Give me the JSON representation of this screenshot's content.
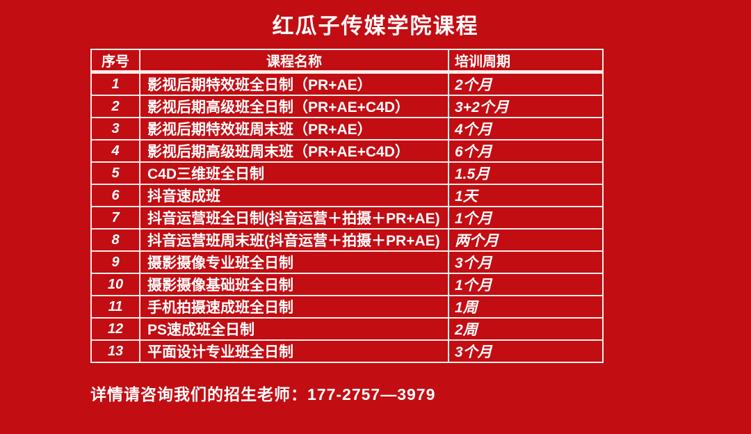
{
  "title": "红瓜子传媒学院课程",
  "table": {
    "headers": [
      "序号",
      "课程名称",
      "培训周期"
    ],
    "rows": [
      {
        "index": "1",
        "name": "影视后期特效班全日制（PR+AE）",
        "period": "2个月"
      },
      {
        "index": "2",
        "name": "影视后期高级班全日制（PR+AE+C4D）",
        "period": "3+2个月"
      },
      {
        "index": "3",
        "name": "影视后期特效班周末班（PR+AE）",
        "period": "4个月"
      },
      {
        "index": "4",
        "name": "影视后期高级班周末班（PR+AE+C4D）",
        "period": "6个月"
      },
      {
        "index": "5",
        "name": "C4D三维班全日制",
        "period": "1.5月"
      },
      {
        "index": "6",
        "name": "抖音速成班",
        "period": "1天"
      },
      {
        "index": "7",
        "name": "抖音运营班全日制(抖音运营＋拍摄＋PR+AE)",
        "period": "1个月"
      },
      {
        "index": "8",
        "name": "抖音运营班周末班(抖音运营＋拍摄＋PR+AE)",
        "period": "两个月"
      },
      {
        "index": "9",
        "name": "摄影摄像专业班全日制",
        "period": "3个月"
      },
      {
        "index": "10",
        "name": "摄影摄像基础班全日制",
        "period": "1个月"
      },
      {
        "index": "11",
        "name": "手机拍摄速成班全日制",
        "period": "1周"
      },
      {
        "index": "12",
        "name": "PS速成班全日制",
        "period": "2周"
      },
      {
        "index": "13",
        "name": "平面设计专业班全日制",
        "period": "3个月"
      }
    ]
  },
  "footer": {
    "note": "详情请咨询我们的招生老师：177-2757—3979"
  },
  "colors": {
    "background": "#c20d13",
    "border": "#f6eee9",
    "text": "#ffffff"
  }
}
